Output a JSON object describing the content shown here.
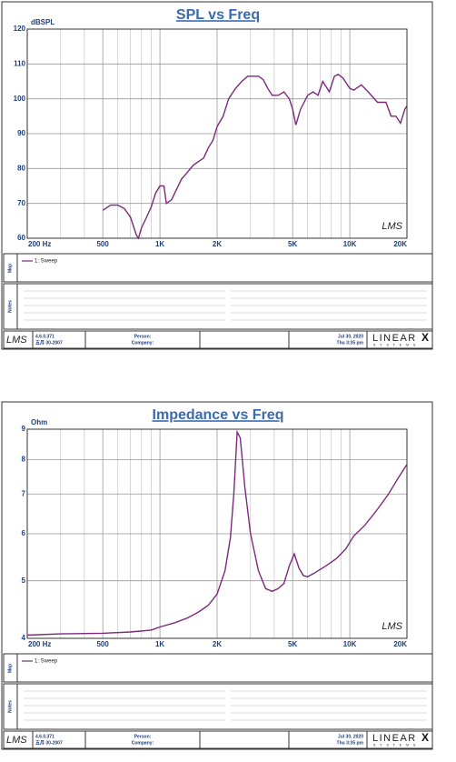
{
  "chart_data": [
    {
      "type": "line",
      "title": "SPL vs Freq",
      "ylabel": "dBSPL",
      "xscale": "log",
      "yscale": "linear",
      "xlim": [
        200,
        20000
      ],
      "ylim": [
        60,
        120
      ],
      "xticks": [
        {
          "value": 200,
          "label": "200  Hz"
        },
        500,
        {
          "value": 1000,
          "label": "1K"
        },
        {
          "value": 2000,
          "label": "2K"
        },
        {
          "value": 5000,
          "label": "5K"
        },
        {
          "value": 10000,
          "label": "10K"
        },
        {
          "value": 20000,
          "label": "20K"
        }
      ],
      "yticks": [
        60,
        70,
        80,
        90,
        100,
        110,
        120
      ],
      "xgrid": [
        300,
        400,
        600,
        700,
        800,
        900,
        3000,
        4000,
        6000,
        7000,
        8000,
        9000
      ],
      "grid": true,
      "watermark": "LMS",
      "x": [
        500,
        550,
        600,
        650,
        700,
        750,
        770,
        800,
        850,
        900,
        950,
        1000,
        1050,
        1080,
        1150,
        1300,
        1400,
        1500,
        1700,
        1800,
        1900,
        2000,
        2150,
        2300,
        2500,
        2700,
        2900,
        3300,
        3500,
        3700,
        3900,
        4200,
        4500,
        4800,
        5000,
        5200,
        5500,
        6000,
        6400,
        6800,
        7200,
        7800,
        8300,
        8700,
        9200,
        10000,
        10500,
        11500,
        12500,
        14000,
        15500,
        16500,
        17500,
        18500,
        19500,
        20000
      ],
      "series": [
        {
          "name": "1: Sweep",
          "color": "#7b2a7b",
          "values": [
            68,
            69.5,
            69.5,
            68.5,
            66,
            61,
            60,
            63,
            66,
            69,
            73,
            75,
            75,
            70,
            71,
            77,
            79,
            81,
            83,
            86,
            88,
            92,
            95,
            100,
            103,
            105,
            106.5,
            106.5,
            105.5,
            103,
            101,
            101,
            102,
            100,
            97,
            92.5,
            97,
            101,
            102,
            101,
            105,
            102,
            106.5,
            107,
            106,
            103,
            102.5,
            104,
            102,
            99,
            99,
            95,
            95,
            93,
            97,
            98
          ]
        }
      ],
      "map_label": "Map",
      "notes_label": "Notes",
      "footer": {
        "logo": "LMS",
        "version": "4.6.0.371",
        "build": "五月 30-2007",
        "person": "Person:",
        "company": "Company:",
        "date": "Jul 30, 2020",
        "time": "Thu  3:35 pm",
        "brand": "LINEAR",
        "brand_x": "X",
        "brand_sub": "S Y S T E M S"
      }
    },
    {
      "type": "line",
      "title": "Impedance vs Freq",
      "ylabel": "Ohm",
      "xscale": "log",
      "yscale": "log",
      "xlim": [
        200,
        20000
      ],
      "ylim": [
        4,
        9
      ],
      "xticks": [
        {
          "value": 200,
          "label": "200  Hz"
        },
        500,
        {
          "value": 1000,
          "label": "1K"
        },
        {
          "value": 2000,
          "label": "2K"
        },
        {
          "value": 5000,
          "label": "5K"
        },
        {
          "value": 10000,
          "label": "10K"
        },
        {
          "value": 20000,
          "label": "20K"
        }
      ],
      "yticks": [
        4,
        5,
        6,
        7,
        8,
        9
      ],
      "xgrid": [
        300,
        400,
        600,
        700,
        800,
        900,
        3000,
        4000,
        6000,
        7000,
        8000,
        9000
      ],
      "grid": true,
      "watermark": "LMS",
      "x": [
        200,
        300,
        500,
        700,
        900,
        1000,
        1200,
        1400,
        1600,
        1800,
        2000,
        2200,
        2350,
        2450,
        2550,
        2650,
        2800,
        3000,
        3300,
        3600,
        3900,
        4200,
        4500,
        4800,
        5100,
        5400,
        5700,
        6000,
        6500,
        7500,
        8500,
        9500,
        10500,
        12000,
        14000,
        16000,
        18000,
        20000
      ],
      "series": [
        {
          "name": "1: Sweep",
          "color": "#7b2a7b",
          "values": [
            4.05,
            4.07,
            4.08,
            4.1,
            4.13,
            4.18,
            4.25,
            4.33,
            4.43,
            4.55,
            4.75,
            5.2,
            5.9,
            7,
            8.9,
            8.7,
            7.2,
            6.0,
            5.2,
            4.85,
            4.8,
            4.85,
            4.95,
            5.3,
            5.55,
            5.25,
            5.1,
            5.08,
            5.15,
            5.3,
            5.45,
            5.65,
            5.95,
            6.2,
            6.6,
            7.0,
            7.45,
            7.85
          ]
        }
      ],
      "map_label": "Map",
      "notes_label": "Notes",
      "footer": {
        "logo": "LMS",
        "version": "4.6.0.371",
        "build": "五月 30-2007",
        "person": "Person:",
        "company": "Company:",
        "date": "Jul 30, 2020",
        "time": "Thu  3:35 pm",
        "brand": "LINEAR",
        "brand_x": "X",
        "brand_sub": "S Y S T E M S"
      }
    }
  ]
}
